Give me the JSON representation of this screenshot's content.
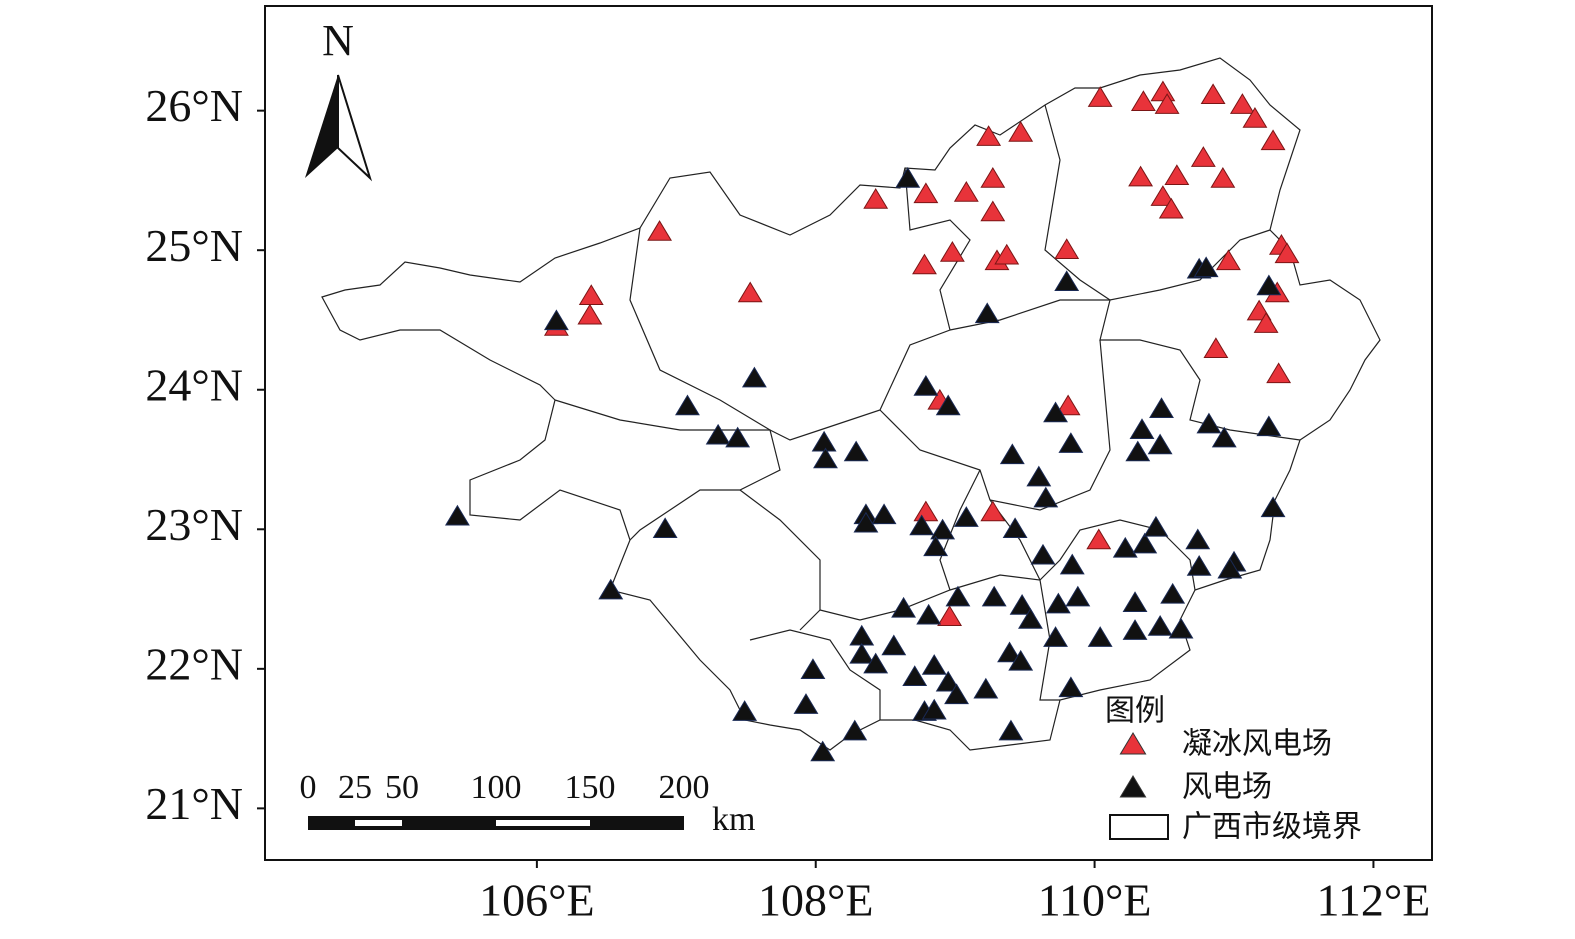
{
  "chart_data": {
    "type": "scatter",
    "xlim": [
      104.05,
      112.42
    ],
    "ylim": [
      20.63,
      26.75
    ],
    "xticks": [
      {
        "value": 106,
        "label": "106°E"
      },
      {
        "value": 108,
        "label": "108°E"
      },
      {
        "value": 110,
        "label": "110°E"
      },
      {
        "value": 112,
        "label": "112°E"
      }
    ],
    "yticks": [
      {
        "value": 21,
        "label": "21°N"
      },
      {
        "value": 22,
        "label": "22°N"
      },
      {
        "value": 23,
        "label": "23°N"
      },
      {
        "value": 24,
        "label": "24°N"
      },
      {
        "value": 25,
        "label": "25°N"
      },
      {
        "value": 26,
        "label": "26°N"
      }
    ],
    "north": "N",
    "legend_title": "图例",
    "boundary_label": "广西市级境界",
    "scale_bar": {
      "values": [
        0,
        25,
        50,
        100,
        150,
        200
      ],
      "unit": "km"
    },
    "series": [
      {
        "name": "凝冰风电场",
        "color": "#e8333a",
        "x": [
          110.04,
          110.35,
          110.49,
          110.52,
          110.85,
          111.06,
          111.15,
          111.28,
          109.24,
          109.47,
          108.43,
          108.79,
          109.08,
          109.27,
          109.27,
          110.33,
          110.59,
          110.78,
          110.92,
          110.49,
          110.55,
          106.88,
          106.39,
          106.38,
          106.14,
          107.53,
          108.78,
          108.98,
          109.3,
          109.37,
          109.8,
          110.96,
          111.34,
          111.38,
          111.31,
          111.18,
          111.23,
          110.87,
          111.32,
          108.89,
          109.81,
          108.79,
          109.27,
          110.03,
          108.96
        ],
        "values": [
          26.09,
          26.06,
          26.13,
          26.04,
          26.11,
          26.04,
          25.94,
          25.78,
          25.81,
          25.84,
          25.36,
          25.4,
          25.41,
          25.51,
          25.27,
          25.52,
          25.53,
          25.66,
          25.51,
          25.38,
          25.29,
          25.13,
          24.67,
          24.53,
          24.45,
          24.69,
          24.89,
          24.98,
          24.92,
          24.96,
          25.0,
          24.92,
          25.03,
          24.97,
          24.69,
          24.56,
          24.47,
          24.29,
          24.11,
          23.92,
          23.88,
          23.12,
          23.12,
          22.92,
          22.37
        ]
      },
      {
        "name": "风电场",
        "color": "#111111",
        "x": [
          108.66,
          110.75,
          110.8,
          109.8,
          109.23,
          106.14,
          111.25,
          107.56,
          107.08,
          107.3,
          107.44,
          108.06,
          108.07,
          108.29,
          108.79,
          108.95,
          109.72,
          109.83,
          110.48,
          110.34,
          110.31,
          110.47,
          110.82,
          110.93,
          111.25,
          109.41,
          109.6,
          109.65,
          108.36,
          108.36,
          108.49,
          108.76,
          108.91,
          108.86,
          109.08,
          109.43,
          109.63,
          109.84,
          110.22,
          110.36,
          110.44,
          110.74,
          110.75,
          111.0,
          110.97,
          111.28,
          105.43,
          106.92,
          106.53,
          108.63,
          108.81,
          109.02,
          109.28,
          109.48,
          109.54,
          109.74,
          109.88,
          109.72,
          110.29,
          110.29,
          110.56,
          110.47,
          110.62,
          110.04,
          108.33,
          108.33,
          108.43,
          108.56,
          109.39,
          109.47,
          108.85,
          108.71,
          108.95,
          109.01,
          109.22,
          107.98,
          107.93,
          107.49,
          108.05,
          108.28,
          108.78,
          108.85,
          109.83,
          109.4
        ],
        "values": [
          25.51,
          24.86,
          24.87,
          24.77,
          24.54,
          24.49,
          24.74,
          24.08,
          23.88,
          23.67,
          23.65,
          23.62,
          23.5,
          23.55,
          24.02,
          23.88,
          23.83,
          23.61,
          23.86,
          23.71,
          23.55,
          23.6,
          23.75,
          23.65,
          23.73,
          23.53,
          23.37,
          23.22,
          23.1,
          23.04,
          23.1,
          23.02,
          22.99,
          22.87,
          23.08,
          23.0,
          22.81,
          22.74,
          22.86,
          22.89,
          23.01,
          22.92,
          22.73,
          22.76,
          22.71,
          23.15,
          23.09,
          23.0,
          22.56,
          22.43,
          22.38,
          22.51,
          22.51,
          22.45,
          22.35,
          22.46,
          22.51,
          22.22,
          22.47,
          22.27,
          22.53,
          22.3,
          22.28,
          22.22,
          22.23,
          22.1,
          22.03,
          22.16,
          22.11,
          22.05,
          22.02,
          21.94,
          21.9,
          21.81,
          21.85,
          21.99,
          21.74,
          21.69,
          21.4,
          21.55,
          21.69,
          21.7,
          21.86,
          21.55
        ]
      }
    ]
  }
}
